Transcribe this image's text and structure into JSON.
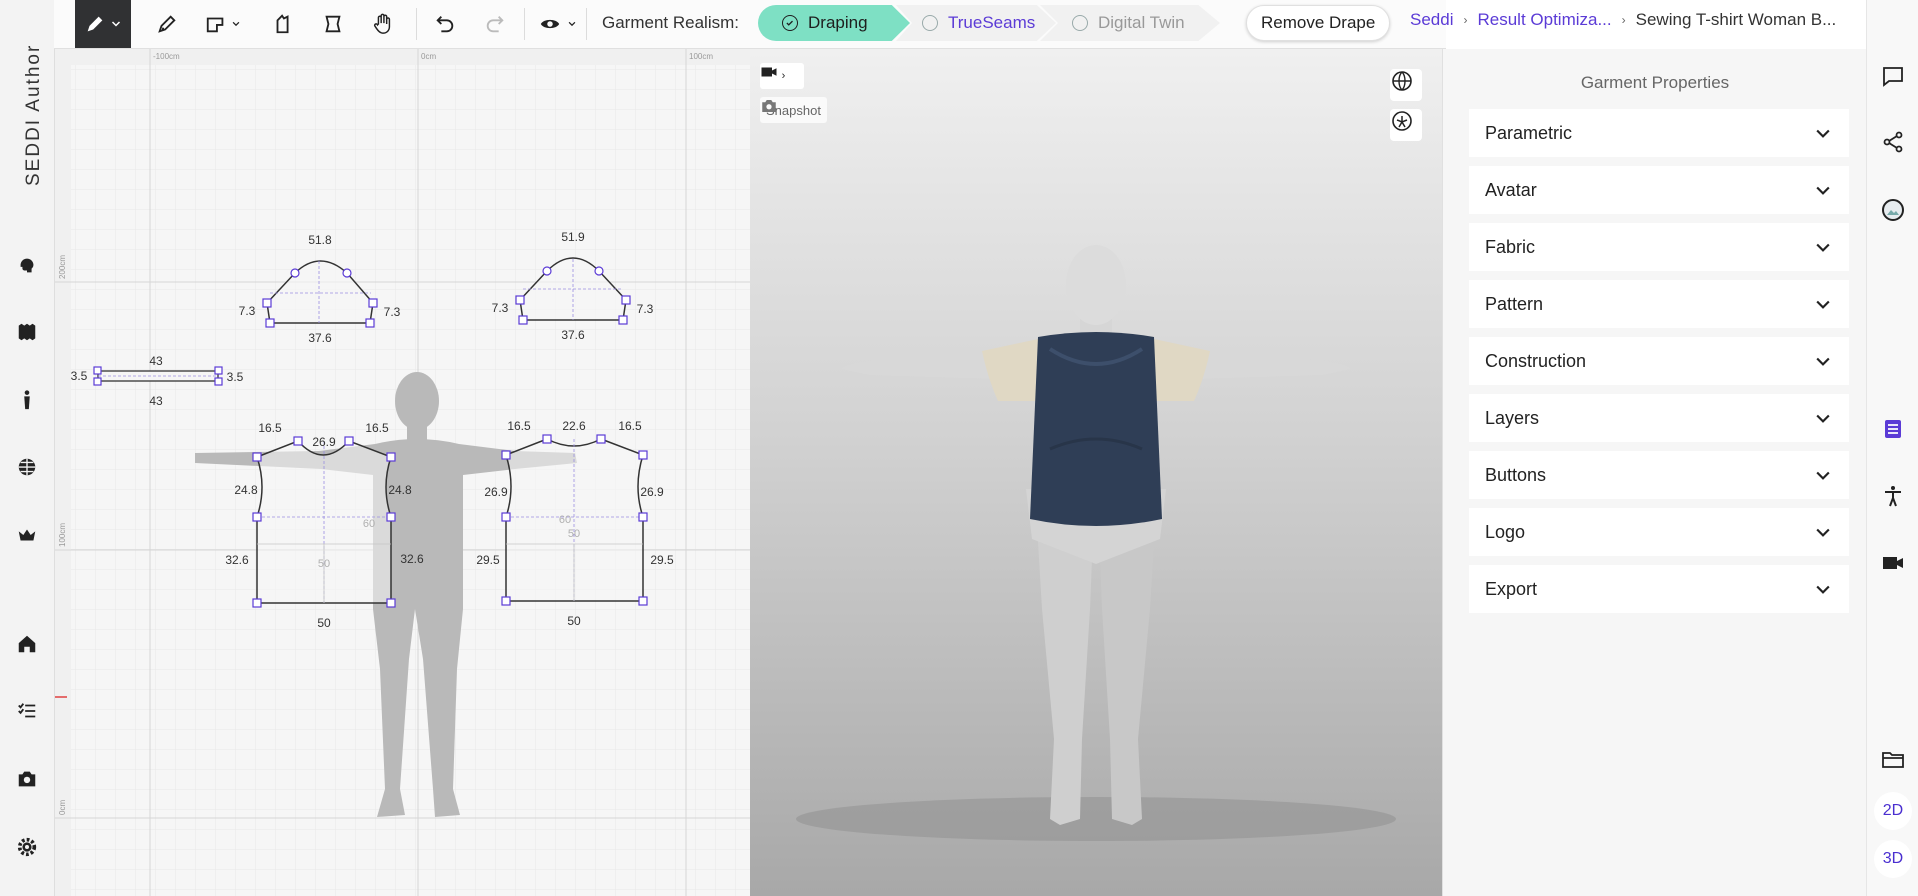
{
  "app": {
    "brand": "SEDDI Author"
  },
  "toolbar": {
    "realism_label": "Garment Realism:",
    "modes": [
      {
        "label": "Draping",
        "state": "active"
      },
      {
        "label": "TrueSeams",
        "state": "available"
      },
      {
        "label": "Digital Twin",
        "state": "disabled"
      }
    ],
    "remove_drape_label": "Remove Drape",
    "tools": [
      "pen-edit-icon",
      "pen-icon",
      "sewing-machine-icon",
      "pattern-piece-icon",
      "trace-icon",
      "hand-icon",
      "undo-icon",
      "redo-icon",
      "eye-icon"
    ]
  },
  "breadcrumb": {
    "root": "Seddi",
    "middle": "Result Optimiza...",
    "current": "Sewing T-shirt Woman B..."
  },
  "left_rail": [
    "head-icon",
    "fabric-icon",
    "avatar-icon",
    "globe-icon",
    "crown-icon",
    "home-icon",
    "checklist-icon",
    "camera-icon",
    "settings-icon"
  ],
  "pattern": {
    "ruler_labels": [
      "-100cm",
      "0cm",
      "100cm",
      "200cm",
      "100cm",
      "0cm"
    ],
    "sleeve_left": {
      "top": "51.8",
      "left": "7.3",
      "right": "7.3",
      "bottom": "37.6"
    },
    "sleeve_right": {
      "top": "51.9",
      "left": "7.3",
      "right": "7.3",
      "bottom": "37.6"
    },
    "neckband": {
      "top": "43",
      "bottom": "43",
      "left": "3.5",
      "right": "3.5"
    },
    "front": {
      "shoulder_l": "16.5",
      "neck": "26.9",
      "shoulder_r": "16.5",
      "arm_l": "24.8",
      "arm_r": "24.8",
      "side_l": "32.6",
      "side_r": "32.6",
      "bottom": "50",
      "inner_a": "60",
      "inner_b": "50"
    },
    "back": {
      "shoulder_l": "16.5",
      "neck": "22.6",
      "shoulder_r": "16.5",
      "arm_l": "26.9",
      "arm_r": "26.9",
      "side_l": "29.5",
      "side_r": "29.5",
      "bottom": "50",
      "inner_a": "60",
      "inner_b": "50"
    }
  },
  "viewport": {
    "snapshot_label": "Snapshot",
    "shirt_color": "#2f3e56",
    "sleeve_color": "#e0d8c4"
  },
  "properties": {
    "title": "Garment Properties",
    "sections": [
      "Parametric",
      "Avatar",
      "Fabric",
      "Pattern",
      "Construction",
      "Layers",
      "Buttons",
      "Logo",
      "Export"
    ]
  },
  "right_rail": {
    "icons": [
      "comment-icon",
      "share-icon",
      "profile-icon",
      "properties-icon",
      "accessibility-icon",
      "video-icon",
      "folder-icon"
    ],
    "mode_2d": "2D",
    "mode_3d": "3D"
  },
  "colors": {
    "accent": "#5b3bd6",
    "draping": "#7ee0c4",
    "toolbar_active": "#303133"
  }
}
